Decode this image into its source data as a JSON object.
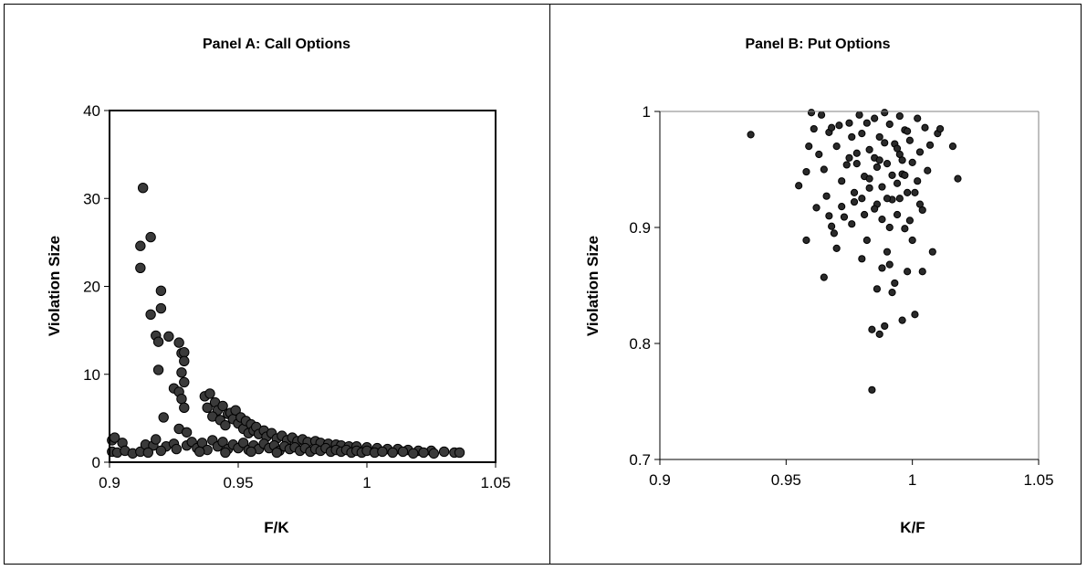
{
  "chart_data": [
    {
      "type": "scatter",
      "title": "Panel A: Call Options",
      "xlabel": "F/K",
      "ylabel": "Violation Size",
      "xlim": [
        0.9,
        1.05
      ],
      "ylim": [
        0,
        40
      ],
      "xticks": [
        "0.9",
        "0.95",
        "1",
        "1.05"
      ],
      "yticks": [
        "0",
        "10",
        "20",
        "30",
        "40"
      ],
      "xtick_values": [
        0.9,
        0.95,
        1.0,
        1.05
      ],
      "ytick_values": [
        0,
        10,
        20,
        30,
        40
      ],
      "grid": false,
      "marker_color": "#3a3a3a",
      "points": [
        [
          0.913,
          31.2
        ],
        [
          0.912,
          24.6
        ],
        [
          0.912,
          22.1
        ],
        [
          0.916,
          25.6
        ],
        [
          0.916,
          16.8
        ],
        [
          0.918,
          14.4
        ],
        [
          0.92,
          19.5
        ],
        [
          0.92,
          17.5
        ],
        [
          0.919,
          13.7
        ],
        [
          0.919,
          10.5
        ],
        [
          0.921,
          5.1
        ],
        [
          0.923,
          14.3
        ],
        [
          0.925,
          8.4
        ],
        [
          0.927,
          13.6
        ],
        [
          0.928,
          12.4
        ],
        [
          0.929,
          12.5
        ],
        [
          0.929,
          11.5
        ],
        [
          0.928,
          10.2
        ],
        [
          0.929,
          9.1
        ],
        [
          0.927,
          8.0
        ],
        [
          0.928,
          7.2
        ],
        [
          0.929,
          6.2
        ],
        [
          0.927,
          3.8
        ],
        [
          0.93,
          3.4
        ],
        [
          0.937,
          7.5
        ],
        [
          0.939,
          7.8
        ],
        [
          0.941,
          6.8
        ],
        [
          0.938,
          6.2
        ],
        [
          0.942,
          5.9
        ],
        [
          0.94,
          5.2
        ],
        [
          0.943,
          4.8
        ],
        [
          0.944,
          6.4
        ],
        [
          0.946,
          5.5
        ],
        [
          0.945,
          4.2
        ],
        [
          0.947,
          5.6
        ],
        [
          0.948,
          4.9
        ],
        [
          0.949,
          5.9
        ],
        [
          0.95,
          4.4
        ],
        [
          0.951,
          5.1
        ],
        [
          0.952,
          3.8
        ],
        [
          0.953,
          4.7
        ],
        [
          0.954,
          3.3
        ],
        [
          0.955,
          4.3
        ],
        [
          0.956,
          3.6
        ],
        [
          0.957,
          4.0
        ],
        [
          0.958,
          3.2
        ],
        [
          0.96,
          3.6
        ],
        [
          0.961,
          2.9
        ],
        [
          0.963,
          3.3
        ],
        [
          0.965,
          2.7
        ],
        [
          0.967,
          3.0
        ],
        [
          0.969,
          2.5
        ],
        [
          0.971,
          2.8
        ],
        [
          0.973,
          2.4
        ],
        [
          0.975,
          2.6
        ],
        [
          0.977,
          2.3
        ],
        [
          0.98,
          2.4
        ],
        [
          0.982,
          2.2
        ],
        [
          0.985,
          2.1
        ],
        [
          0.988,
          2.0
        ],
        [
          0.99,
          1.9
        ],
        [
          0.993,
          1.8
        ],
        [
          0.996,
          1.8
        ],
        [
          1.0,
          1.7
        ],
        [
          1.004,
          1.6
        ],
        [
          1.008,
          1.5
        ],
        [
          1.012,
          1.5
        ],
        [
          1.016,
          1.4
        ],
        [
          1.02,
          1.3
        ],
        [
          1.025,
          1.3
        ],
        [
          1.03,
          1.2
        ],
        [
          1.034,
          1.1
        ],
        [
          1.036,
          1.1
        ],
        [
          0.901,
          2.5
        ],
        [
          0.902,
          2.8
        ],
        [
          0.905,
          2.2
        ],
        [
          0.901,
          1.2
        ],
        [
          0.903,
          1.1
        ],
        [
          0.906,
          1.3
        ],
        [
          0.909,
          1.0
        ],
        [
          0.912,
          1.2
        ],
        [
          0.914,
          2.0
        ],
        [
          0.917,
          1.9
        ],
        [
          0.918,
          2.6
        ],
        [
          0.922,
          1.8
        ],
        [
          0.925,
          2.1
        ],
        [
          0.926,
          1.5
        ],
        [
          0.93,
          1.9
        ],
        [
          0.932,
          2.3
        ],
        [
          0.934,
          1.6
        ],
        [
          0.936,
          2.2
        ],
        [
          0.938,
          1.4
        ],
        [
          0.94,
          2.5
        ],
        [
          0.942,
          1.8
        ],
        [
          0.944,
          2.3
        ],
        [
          0.946,
          1.5
        ],
        [
          0.948,
          2.0
        ],
        [
          0.95,
          1.6
        ],
        [
          0.952,
          2.2
        ],
        [
          0.954,
          1.4
        ],
        [
          0.956,
          1.9
        ],
        [
          0.958,
          1.5
        ],
        [
          0.96,
          2.1
        ],
        [
          0.962,
          1.6
        ],
        [
          0.964,
          1.9
        ],
        [
          0.966,
          1.3
        ],
        [
          0.968,
          1.8
        ],
        [
          0.97,
          1.5
        ],
        [
          0.972,
          1.7
        ],
        [
          0.974,
          1.3
        ],
        [
          0.976,
          1.6
        ],
        [
          0.978,
          1.2
        ],
        [
          0.98,
          1.5
        ],
        [
          0.982,
          1.3
        ],
        [
          0.984,
          1.6
        ],
        [
          0.986,
          1.2
        ],
        [
          0.988,
          1.4
        ],
        [
          0.99,
          1.2
        ],
        [
          0.992,
          1.4
        ],
        [
          0.994,
          1.1
        ],
        [
          0.996,
          1.3
        ],
        [
          0.998,
          1.1
        ],
        [
          1.0,
          1.3
        ],
        [
          1.003,
          1.1
        ],
        [
          1.006,
          1.2
        ],
        [
          1.01,
          1.1
        ],
        [
          1.014,
          1.2
        ],
        [
          1.018,
          1.0
        ],
        [
          1.022,
          1.1
        ],
        [
          1.026,
          1.0
        ],
        [
          0.915,
          1.1
        ],
        [
          0.92,
          1.3
        ],
        [
          0.935,
          1.2
        ],
        [
          0.945,
          1.1
        ],
        [
          0.955,
          1.2
        ],
        [
          0.965,
          1.1
        ]
      ]
    },
    {
      "type": "scatter",
      "title": "Panel B: Put Options",
      "xlabel": "K/F",
      "ylabel": "Violation Size",
      "xlim": [
        0.9,
        1.05
      ],
      "ylim": [
        0.7,
        1.0
      ],
      "xticks": [
        "0.9",
        "0.95",
        "1",
        "1.05"
      ],
      "yticks": [
        "0.7",
        "0.8",
        "0.9",
        "1"
      ],
      "xtick_values": [
        0.9,
        0.95,
        1.0,
        1.05
      ],
      "ytick_values": [
        0.7,
        0.8,
        0.9,
        1.0
      ],
      "grid": false,
      "marker_color": "#2a2a2a",
      "points": [
        [
          0.936,
          0.98
        ],
        [
          0.955,
          0.936
        ],
        [
          0.958,
          0.948
        ],
        [
          0.958,
          0.889
        ],
        [
          0.959,
          0.97
        ],
        [
          0.96,
          0.999
        ],
        [
          0.961,
          0.985
        ],
        [
          0.962,
          0.917
        ],
        [
          0.963,
          0.963
        ],
        [
          0.964,
          0.997
        ],
        [
          0.965,
          0.857
        ],
        [
          0.965,
          0.95
        ],
        [
          0.966,
          0.927
        ],
        [
          0.967,
          0.982
        ],
        [
          0.967,
          0.91
        ],
        [
          0.968,
          0.901
        ],
        [
          0.969,
          0.895
        ],
        [
          0.97,
          0.882
        ],
        [
          0.97,
          0.97
        ],
        [
          0.971,
          0.988
        ],
        [
          0.972,
          0.94
        ],
        [
          0.972,
          0.918
        ],
        [
          0.973,
          0.909
        ],
        [
          0.974,
          0.954
        ],
        [
          0.975,
          0.99
        ],
        [
          0.976,
          0.903
        ],
        [
          0.976,
          0.978
        ],
        [
          0.977,
          0.93
        ],
        [
          0.978,
          0.955
        ],
        [
          0.979,
          0.997
        ],
        [
          0.98,
          0.873
        ],
        [
          0.98,
          0.925
        ],
        [
          0.981,
          0.944
        ],
        [
          0.982,
          0.889
        ],
        [
          0.982,
          0.99
        ],
        [
          0.983,
          0.967
        ],
        [
          0.983,
          0.942
        ],
        [
          0.984,
          0.76
        ],
        [
          0.984,
          0.812
        ],
        [
          0.985,
          0.96
        ],
        [
          0.985,
          0.994
        ],
        [
          0.986,
          0.847
        ],
        [
          0.986,
          0.92
        ],
        [
          0.987,
          0.808
        ],
        [
          0.987,
          0.978
        ],
        [
          0.988,
          0.865
        ],
        [
          0.988,
          0.935
        ],
        [
          0.989,
          0.815
        ],
        [
          0.989,
          0.999
        ],
        [
          0.99,
          0.955
        ],
        [
          0.99,
          0.879
        ],
        [
          0.991,
          0.989
        ],
        [
          0.991,
          0.868
        ],
        [
          0.992,
          0.924
        ],
        [
          0.992,
          0.844
        ],
        [
          0.993,
          0.972
        ],
        [
          0.993,
          0.852
        ],
        [
          0.994,
          0.938
        ],
        [
          0.994,
          0.911
        ],
        [
          0.995,
          0.996
        ],
        [
          0.995,
          0.963
        ],
        [
          0.996,
          0.82
        ],
        [
          0.996,
          0.946
        ],
        [
          0.997,
          0.984
        ],
        [
          0.997,
          0.899
        ],
        [
          0.998,
          0.93
        ],
        [
          0.998,
          0.862
        ],
        [
          0.999,
          0.975
        ],
        [
          1.0,
          0.956
        ],
        [
          1.0,
          0.889
        ],
        [
          1.001,
          0.825
        ],
        [
          1.002,
          0.994
        ],
        [
          1.002,
          0.94
        ],
        [
          1.003,
          0.965
        ],
        [
          1.004,
          0.915
        ],
        [
          1.004,
          0.862
        ],
        [
          1.005,
          0.986
        ],
        [
          1.006,
          0.949
        ],
        [
          1.007,
          0.971
        ],
        [
          1.008,
          0.879
        ],
        [
          1.01,
          0.981
        ],
        [
          1.011,
          0.985
        ],
        [
          1.016,
          0.97
        ],
        [
          1.018,
          0.942
        ],
        [
          0.978,
          0.964
        ],
        [
          0.981,
          0.911
        ],
        [
          0.983,
          0.934
        ],
        [
          0.986,
          0.952
        ],
        [
          0.988,
          0.907
        ],
        [
          0.989,
          0.973
        ],
        [
          0.99,
          0.925
        ],
        [
          0.992,
          0.945
        ],
        [
          0.994,
          0.968
        ],
        [
          0.995,
          0.925
        ],
        [
          0.997,
          0.945
        ],
        [
          0.998,
          0.983
        ],
        [
          0.999,
          0.906
        ],
        [
          1.001,
          0.93
        ],
        [
          0.98,
          0.981
        ],
        [
          0.975,
          0.96
        ],
        [
          0.977,
          0.922
        ],
        [
          0.985,
          0.916
        ],
        [
          0.987,
          0.958
        ],
        [
          0.991,
          0.9
        ],
        [
          0.996,
          0.958
        ],
        [
          1.003,
          0.92
        ],
        [
          0.968,
          0.986
        ]
      ]
    }
  ]
}
